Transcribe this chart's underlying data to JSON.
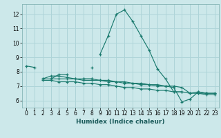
{
  "title": "",
  "xlabel": "Humidex (Indice chaleur)",
  "ylabel": "",
  "bg_color": "#cce8ea",
  "grid_color": "#aed4d8",
  "line_color": "#1a7a6e",
  "xlim": [
    -0.5,
    23.5
  ],
  "ylim": [
    5.5,
    12.7
  ],
  "yticks": [
    6,
    7,
    8,
    9,
    10,
    11,
    12
  ],
  "xticks": [
    0,
    1,
    2,
    3,
    4,
    5,
    6,
    7,
    8,
    9,
    10,
    11,
    12,
    13,
    14,
    15,
    16,
    17,
    18,
    19,
    20,
    21,
    22,
    23
  ],
  "series": [
    [
      8.4,
      8.3,
      null,
      null,
      null,
      null,
      null,
      null,
      null,
      9.2,
      10.5,
      12.0,
      12.3,
      11.5,
      10.5,
      9.5,
      8.2,
      7.5,
      6.6,
      6.6,
      null,
      6.5,
      6.5,
      null
    ],
    [
      null,
      null,
      null,
      7.5,
      7.8,
      7.8,
      null,
      7.5,
      7.5,
      null,
      null,
      null,
      null,
      null,
      null,
      null,
      null,
      null,
      null,
      null,
      null,
      null,
      null,
      null
    ],
    [
      null,
      null,
      null,
      null,
      null,
      null,
      null,
      null,
      8.3,
      null,
      null,
      null,
      null,
      null,
      null,
      null,
      null,
      null,
      null,
      null,
      null,
      null,
      null,
      null
    ],
    [
      null,
      null,
      7.5,
      7.5,
      7.5,
      7.5,
      7.5,
      7.4,
      7.4,
      7.4,
      7.3,
      7.3,
      7.2,
      7.2,
      7.1,
      7.1,
      7.0,
      7.0,
      6.9,
      5.9,
      6.1,
      6.6,
      6.5,
      6.5
    ],
    [
      null,
      null,
      7.4,
      7.4,
      7.3,
      7.3,
      7.3,
      7.2,
      7.2,
      7.1,
      7.1,
      7.0,
      6.9,
      6.9,
      6.8,
      6.8,
      6.7,
      6.7,
      6.6,
      6.6,
      6.5,
      6.5,
      6.4,
      6.4
    ],
    [
      null,
      null,
      7.5,
      7.7,
      7.7,
      7.6,
      7.5,
      7.5,
      7.5,
      7.4,
      7.4,
      7.3,
      7.3,
      7.2,
      7.2,
      7.1,
      7.1,
      7.0,
      7.0,
      6.9,
      6.5,
      6.6,
      6.5,
      6.5
    ]
  ]
}
